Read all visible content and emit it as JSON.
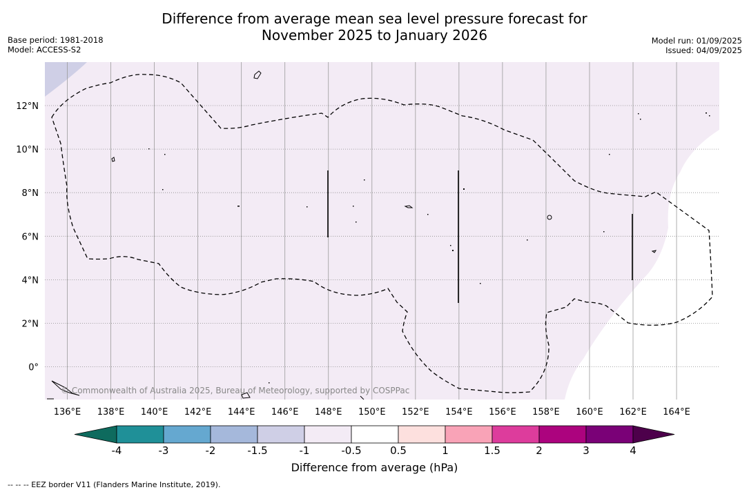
{
  "title_line1": "Difference from average mean sea level pressure forecast for",
  "title_line2": "November 2025 to January 2026",
  "base_period": "Base period: 1981-2018",
  "model": "Model: ACCESS-S2",
  "model_run": "Model run: 01/09/2025",
  "issued": "Issued: 04/09/2025",
  "copyright": "© Commonwealth of Australia 2025, Bureau of Meteorology, supported by COSPPac",
  "footnote": "-- -- -- EEZ border V11 (Flanders Marine Institute, 2019).",
  "colorbar": {
    "label": "Difference from average (hPa)",
    "ticks": [
      "-4",
      "-3",
      "-2",
      "-1.5",
      "-1",
      "-0.5",
      "0.5",
      "1",
      "1.5",
      "2",
      "3",
      "4"
    ],
    "colors": [
      "#0e6b5e",
      "#1f9098",
      "#65a8d0",
      "#a5b8db",
      "#cfcfe6",
      "#f3ebf5",
      "#ffffff",
      "#fde0de",
      "#f9a3b7",
      "#dd3c9c",
      "#ac037e",
      "#7a0177",
      "#4d004b"
    ]
  },
  "map": {
    "lon_labels": [
      "136°E",
      "138°E",
      "140°E",
      "142°E",
      "144°E",
      "146°E",
      "148°E",
      "150°E",
      "152°E",
      "154°E",
      "156°E",
      "158°E",
      "160°E",
      "162°E",
      "164°E"
    ],
    "lat_labels": [
      "12°N",
      "10°N",
      "8°N",
      "6°N",
      "4°N",
      "2°N",
      "0°"
    ],
    "fill_main": "#f3ebf5",
    "fill_low": "#cfcfe6",
    "fill_neutral": "#ffffff"
  }
}
